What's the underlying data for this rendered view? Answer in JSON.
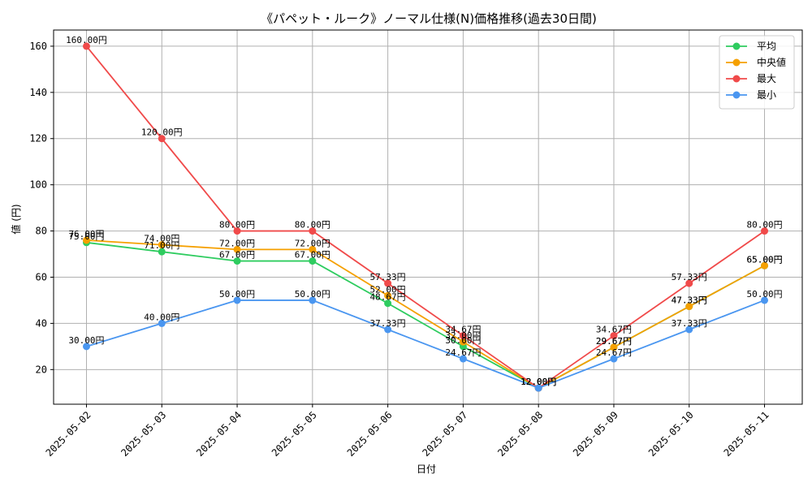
{
  "chart_data": {
    "type": "line",
    "title": "《パペット・ルーク》ノーマル仕様(N)価格推移(過去30日間)",
    "xlabel": "日付",
    "ylabel": "値 (円)",
    "grid": true,
    "legend_position": "top-right",
    "ylim": [
      5,
      167
    ],
    "yticks": [
      20,
      40,
      60,
      80,
      100,
      120,
      140,
      160
    ],
    "categories": [
      "2025-05-02",
      "2025-05-03",
      "2025-05-04",
      "2025-05-05",
      "2025-05-06",
      "2025-05-07",
      "2025-05-08",
      "2025-05-09",
      "2025-05-10",
      "2025-05-11"
    ],
    "series": [
      {
        "key": "avg",
        "name": "平均",
        "color": "#2ecc5f",
        "values": [
          75.0,
          71.0,
          67.0,
          67.0,
          48.67,
          30.0,
          12.0,
          29.67,
          47.33,
          65.0
        ],
        "labels": [
          "75.00円",
          "71.00円",
          "67.00円",
          "67.00円",
          "48.67円",
          "30.00円",
          "12.00円",
          "29.67円",
          "47.33円",
          "65.00円"
        ]
      },
      {
        "key": "median",
        "name": "中央値",
        "color": "#f5a000",
        "values": [
          76.0,
          74.0,
          72.0,
          72.0,
          52.0,
          32.0,
          12.0,
          29.67,
          47.33,
          65.0
        ],
        "labels": [
          "76.00円",
          "74.00円",
          "72.00円",
          "72.00円",
          "52.00円",
          "32.00円",
          "12.00円",
          "29.67円",
          "47.33円",
          "65.00円"
        ]
      },
      {
        "key": "max",
        "name": "最大",
        "color": "#f04a4a",
        "values": [
          160.0,
          120.0,
          80.0,
          80.0,
          57.33,
          34.67,
          12.0,
          34.67,
          57.33,
          80.0
        ],
        "labels": [
          "160.00円",
          "120.00円",
          "80.00円",
          "80.00円",
          "57.33円",
          "34.67円",
          "12.00円",
          "34.67円",
          "57.33円",
          "80.00円"
        ]
      },
      {
        "key": "min",
        "name": "最小",
        "color": "#4a96f0",
        "values": [
          30.0,
          40.0,
          50.0,
          50.0,
          37.33,
          24.67,
          12.0,
          24.67,
          37.33,
          50.0
        ],
        "labels": [
          "30.00円",
          "40.00円",
          "50.00円",
          "50.00円",
          "37.33円",
          "24.67円",
          "12.00円",
          "24.67円",
          "37.33円",
          "50.00円"
        ]
      }
    ]
  }
}
